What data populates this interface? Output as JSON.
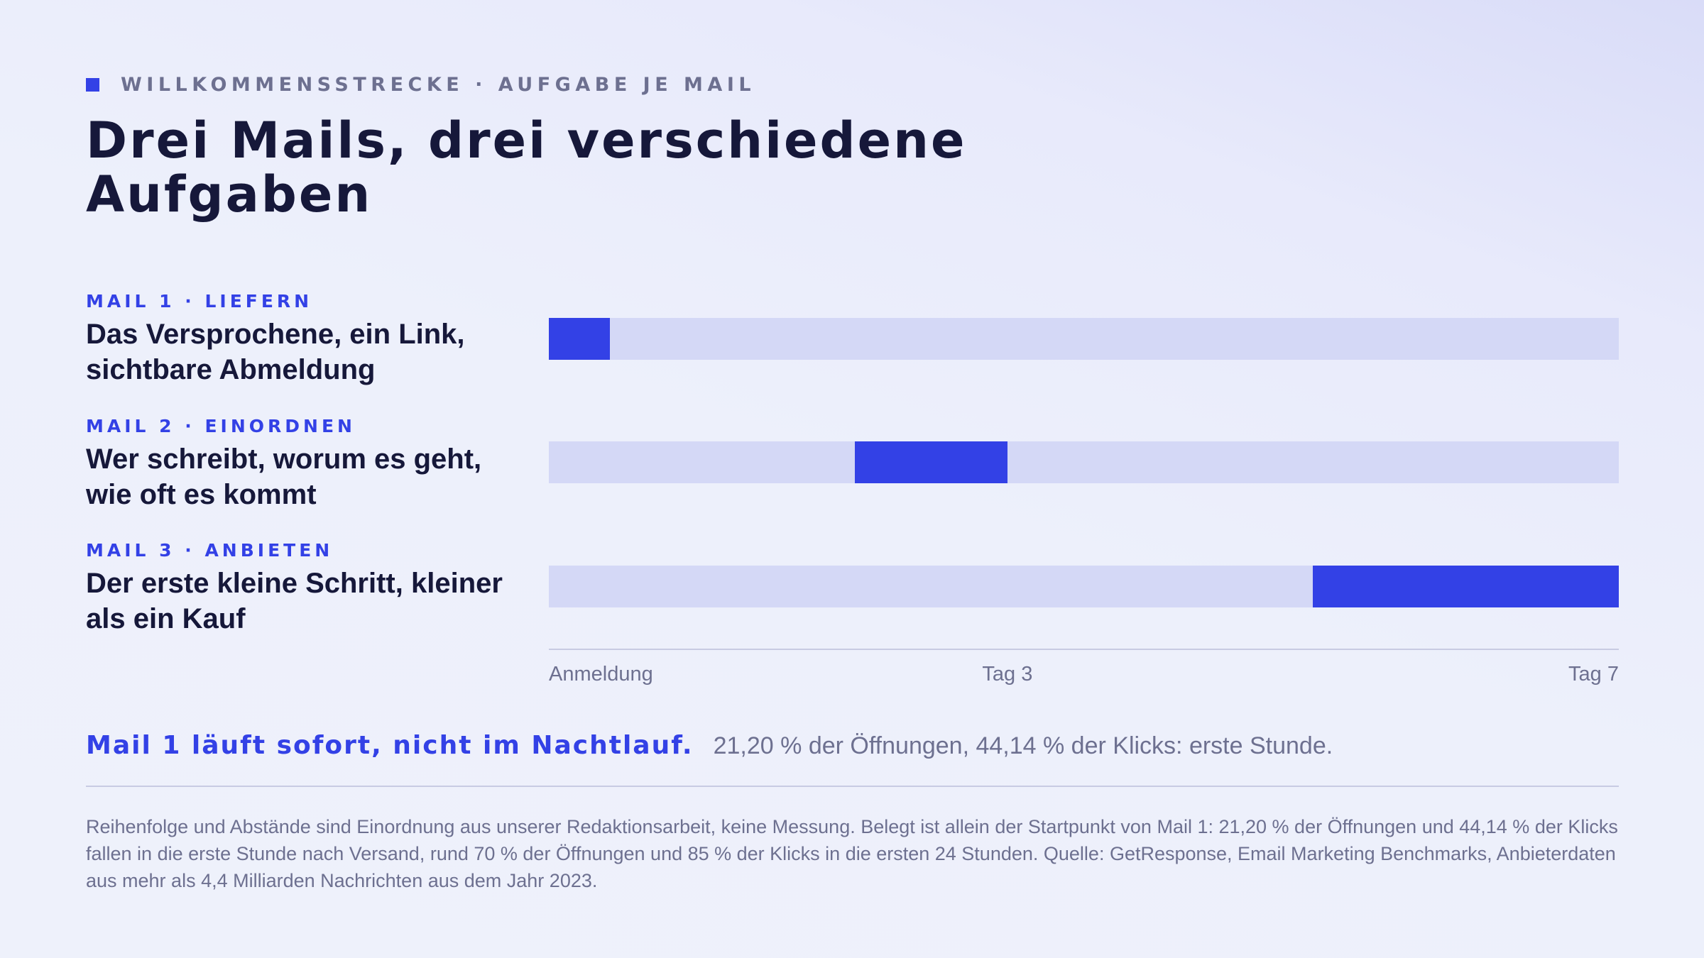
{
  "kicker": "WILLKOMMENSSTRECKE · AUFGABE JE MAIL",
  "title": "Drei Mails, drei verschiedene Aufgaben",
  "colors": {
    "accent": "#3341e6",
    "track": "#d4d8f6",
    "ink": "#16183a",
    "muted": "#6d7090"
  },
  "chart_data": {
    "type": "bar",
    "orientation": "horizontal-timeline",
    "x_axis": {
      "range": [
        0,
        7
      ],
      "unit": "Tage nach Anmeldung",
      "ticks": [
        {
          "value": 0,
          "label": "Anmeldung"
        },
        {
          "value": 3,
          "label": "Tag 3"
        },
        {
          "value": 7,
          "label": "Tag 7"
        }
      ]
    },
    "rows": [
      {
        "tag": "MAIL 1 · LIEFERN",
        "description": "Das Versprochene, ein Link, sichtbare Abmeldung",
        "start": 0,
        "end": 0.4
      },
      {
        "tag": "MAIL 2 · EINORDNEN",
        "description": "Wer schreibt, worum es geht, wie oft es kommt",
        "start": 2.0,
        "end": 3.0
      },
      {
        "tag": "MAIL 3 · ANBIETEN",
        "description": "Der erste kleine Schritt, kleiner als ein Kauf",
        "start": 5.0,
        "end": 7.0
      }
    ]
  },
  "callout": {
    "lead": "Mail 1 läuft sofort, nicht im Nachtlauf.",
    "rest": "21,20 % der Öffnungen, 44,14 % der Klicks: erste Stunde."
  },
  "source": "Reihenfolge und Abstände sind Einordnung aus unserer Redaktionsarbeit, keine Messung. Belegt ist allein der Startpunkt von Mail 1: 21,20 % der Öffnungen und 44,14 % der Klicks fallen in die erste Stunde nach Versand, rund 70 % der Öffnungen und 85 % der Klicks in die ersten 24 Stunden. Quelle: GetResponse, Email Marketing Benchmarks, Anbieterdaten aus mehr als 4,4 Milliarden Nachrichten aus dem Jahr 2023."
}
